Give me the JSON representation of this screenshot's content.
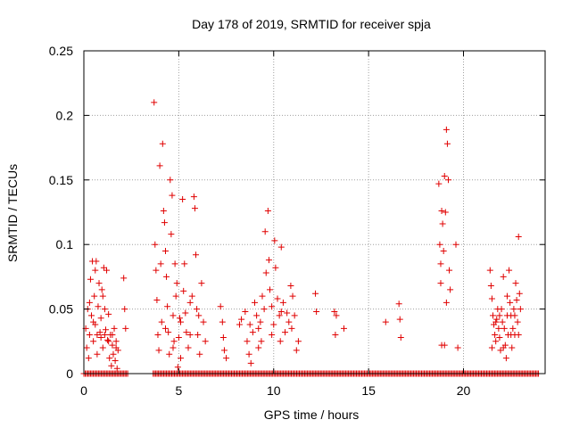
{
  "chart_data": {
    "type": "scatter",
    "title": "Day 178 of 2019, SRMTID for receiver spja",
    "xlabel": "GPS time / hours",
    "ylabel": "SRMTID / TECUs",
    "xlim": [
      0,
      24.3
    ],
    "ylim": [
      0,
      0.25
    ],
    "grid": true,
    "x_ticks": [
      0,
      5,
      10,
      15,
      20
    ],
    "x_tick_labels": [
      "0",
      "5",
      "10",
      "15",
      "20"
    ],
    "y_ticks": [
      0,
      0.05,
      0.1,
      0.15,
      0.2,
      0.25
    ],
    "y_tick_labels": [
      "0",
      "0.05",
      "0.1",
      "0.15",
      "0.2",
      "0.25"
    ],
    "marker": "plus",
    "series": [
      {
        "name": "SRMTID",
        "color": "#e00000",
        "points": [
          [
            0.1,
            0.035
          ],
          [
            0.15,
            0.02
          ],
          [
            0.2,
            0.05
          ],
          [
            0.25,
            0.012
          ],
          [
            0.3,
            0.03
          ],
          [
            0.35,
            0.073
          ],
          [
            0.4,
            0.045
          ],
          [
            0.45,
            0.087
          ],
          [
            0.5,
            0.025
          ],
          [
            0.55,
            0.06
          ],
          [
            0.6,
            0.038
          ],
          [
            0.65,
            0.087
          ],
          [
            0.7,
            0.015
          ],
          [
            0.75,
            0.052
          ],
          [
            0.8,
            0.07
          ],
          [
            0.85,
            0.032
          ],
          [
            0.9,
            0.043
          ],
          [
            0.95,
            0.065
          ],
          [
            1.0,
            0.02
          ],
          [
            1.05,
            0.082
          ],
          [
            1.1,
            0.05
          ],
          [
            1.15,
            0.034
          ],
          [
            1.2,
            0.08
          ],
          [
            1.25,
            0.026
          ],
          [
            1.3,
            0.046
          ],
          [
            1.35,
            0.012
          ],
          [
            1.4,
            0.03
          ],
          [
            1.45,
            0.006
          ],
          [
            1.5,
            0.022
          ],
          [
            1.55,
            0.015
          ],
          [
            1.6,
            0.035
          ],
          [
            1.65,
            0.01
          ],
          [
            1.7,
            0.025
          ],
          [
            1.75,
            0.004
          ],
          [
            1.8,
            0.018
          ],
          [
            0.3,
            0.055
          ],
          [
            0.5,
            0.04
          ],
          [
            0.7,
            0.03
          ],
          [
            0.9,
            0.028
          ],
          [
            1.1,
            0.03
          ],
          [
            1.3,
            0.025
          ],
          [
            1.5,
            0.03
          ],
          [
            1.7,
            0.02
          ],
          [
            0.6,
            0.08
          ],
          [
            1.0,
            0.06
          ],
          [
            2.1,
            0.074
          ],
          [
            2.15,
            0.05
          ],
          [
            2.2,
            0.035
          ],
          [
            3.7,
            0.21
          ],
          [
            3.75,
            0.1
          ],
          [
            3.8,
            0.08
          ],
          [
            3.85,
            0.057
          ],
          [
            3.9,
            0.03
          ],
          [
            3.95,
            0.018
          ],
          [
            4.0,
            0.161
          ],
          [
            4.05,
            0.085
          ],
          [
            4.1,
            0.04
          ],
          [
            4.15,
            0.178
          ],
          [
            4.2,
            0.126
          ],
          [
            4.25,
            0.117
          ],
          [
            4.3,
            0.095
          ],
          [
            4.35,
            0.075
          ],
          [
            4.4,
            0.052
          ],
          [
            4.45,
            0.032
          ],
          [
            4.5,
            0.015
          ],
          [
            4.55,
            0.15
          ],
          [
            4.6,
            0.108
          ],
          [
            4.65,
            0.138
          ],
          [
            4.7,
            0.045
          ],
          [
            4.75,
            0.025
          ],
          [
            4.8,
            0.085
          ],
          [
            4.85,
            0.06
          ],
          [
            4.9,
            0.07
          ],
          [
            4.95,
            0.005
          ],
          [
            5.0,
            0.028
          ],
          [
            5.05,
            0.043
          ],
          [
            5.1,
            0.012
          ],
          [
            5.2,
            0.135
          ],
          [
            5.25,
            0.064
          ],
          [
            5.3,
            0.085
          ],
          [
            5.35,
            0.047
          ],
          [
            5.4,
            0.032
          ],
          [
            5.5,
            0.02
          ],
          [
            5.6,
            0.03
          ],
          [
            5.7,
            0.06
          ],
          [
            5.8,
            0.137
          ],
          [
            5.85,
            0.128
          ],
          [
            5.9,
            0.092
          ],
          [
            5.95,
            0.05
          ],
          [
            6.0,
            0.03
          ],
          [
            6.05,
            0.045
          ],
          [
            6.1,
            0.015
          ],
          [
            6.2,
            0.07
          ],
          [
            6.3,
            0.04
          ],
          [
            6.4,
            0.025
          ],
          [
            4.3,
            0.035
          ],
          [
            4.7,
            0.02
          ],
          [
            5.1,
            0.04
          ],
          [
            5.6,
            0.055
          ],
          [
            7.2,
            0.052
          ],
          [
            7.3,
            0.04
          ],
          [
            7.35,
            0.028
          ],
          [
            7.4,
            0.018
          ],
          [
            7.5,
            0.012
          ],
          [
            8.2,
            0.038
          ],
          [
            8.3,
            0.042
          ],
          [
            8.5,
            0.048
          ],
          [
            8.6,
            0.025
          ],
          [
            8.7,
            0.015
          ],
          [
            8.75,
            0.038
          ],
          [
            8.8,
            0.008
          ],
          [
            8.9,
            0.032
          ],
          [
            9.0,
            0.055
          ],
          [
            9.1,
            0.045
          ],
          [
            9.2,
            0.035
          ],
          [
            9.3,
            0.04
          ],
          [
            9.35,
            0.025
          ],
          [
            9.4,
            0.06
          ],
          [
            9.5,
            0.05
          ],
          [
            9.55,
            0.11
          ],
          [
            9.6,
            0.078
          ],
          [
            9.7,
            0.126
          ],
          [
            9.75,
            0.088
          ],
          [
            9.8,
            0.065
          ],
          [
            9.9,
            0.052
          ],
          [
            10.0,
            0.038
          ],
          [
            10.05,
            0.103
          ],
          [
            10.1,
            0.082
          ],
          [
            10.2,
            0.058
          ],
          [
            10.3,
            0.045
          ],
          [
            10.35,
            0.025
          ],
          [
            10.4,
            0.098
          ],
          [
            10.5,
            0.055
          ],
          [
            10.6,
            0.032
          ],
          [
            10.7,
            0.047
          ],
          [
            10.8,
            0.04
          ],
          [
            10.9,
            0.068
          ],
          [
            10.95,
            0.035
          ],
          [
            11.0,
            0.06
          ],
          [
            11.1,
            0.045
          ],
          [
            11.2,
            0.018
          ],
          [
            11.3,
            0.025
          ],
          [
            9.2,
            0.02
          ],
          [
            9.9,
            0.03
          ],
          [
            10.4,
            0.048
          ],
          [
            12.2,
            0.062
          ],
          [
            12.25,
            0.048
          ],
          [
            13.2,
            0.048
          ],
          [
            13.25,
            0.03
          ],
          [
            13.3,
            0.045
          ],
          [
            13.7,
            0.035
          ],
          [
            15.9,
            0.04
          ],
          [
            16.6,
            0.054
          ],
          [
            16.65,
            0.042
          ],
          [
            16.7,
            0.028
          ],
          [
            18.7,
            0.147
          ],
          [
            18.75,
            0.1
          ],
          [
            18.8,
            0.085
          ],
          [
            18.85,
            0.126
          ],
          [
            18.9,
            0.116
          ],
          [
            18.95,
            0.095
          ],
          [
            19.0,
            0.153
          ],
          [
            19.05,
            0.125
          ],
          [
            19.1,
            0.189
          ],
          [
            19.15,
            0.178
          ],
          [
            19.2,
            0.15
          ],
          [
            19.25,
            0.08
          ],
          [
            19.3,
            0.065
          ],
          [
            18.8,
            0.07
          ],
          [
            19.0,
            0.022
          ],
          [
            18.85,
            0.022
          ],
          [
            19.6,
            0.1
          ],
          [
            19.7,
            0.02
          ],
          [
            19.1,
            0.055
          ],
          [
            21.4,
            0.08
          ],
          [
            21.45,
            0.068
          ],
          [
            21.5,
            0.058
          ],
          [
            21.55,
            0.045
          ],
          [
            21.6,
            0.038
          ],
          [
            21.65,
            0.03
          ],
          [
            21.7,
            0.025
          ],
          [
            21.75,
            0.042
          ],
          [
            21.8,
            0.05
          ],
          [
            21.85,
            0.035
          ],
          [
            21.9,
            0.028
          ],
          [
            21.95,
            0.018
          ],
          [
            22.0,
            0.05
          ],
          [
            22.05,
            0.04
          ],
          [
            22.1,
            0.075
          ],
          [
            22.15,
            0.035
          ],
          [
            22.2,
            0.022
          ],
          [
            22.25,
            0.012
          ],
          [
            22.3,
            0.045
          ],
          [
            22.35,
            0.03
          ],
          [
            22.4,
            0.08
          ],
          [
            22.45,
            0.055
          ],
          [
            22.5,
            0.045
          ],
          [
            22.55,
            0.02
          ],
          [
            22.6,
            0.035
          ],
          [
            22.65,
            0.05
          ],
          [
            22.7,
            0.03
          ],
          [
            22.75,
            0.07
          ],
          [
            22.8,
            0.057
          ],
          [
            22.85,
            0.04
          ],
          [
            22.9,
            0.106
          ],
          [
            22.95,
            0.062
          ],
          [
            23.0,
            0.05
          ],
          [
            21.5,
            0.02
          ],
          [
            21.7,
            0.04
          ],
          [
            21.9,
            0.045
          ],
          [
            22.1,
            0.02
          ],
          [
            22.3,
            0.06
          ],
          [
            22.5,
            0.03
          ],
          [
            22.7,
            0.045
          ],
          [
            22.9,
            0.03
          ]
        ]
      }
    ],
    "zero_band": {
      "color": "#e00000",
      "ranges": [
        [
          0,
          2.35
        ],
        [
          3.65,
          24.0
        ]
      ]
    }
  }
}
